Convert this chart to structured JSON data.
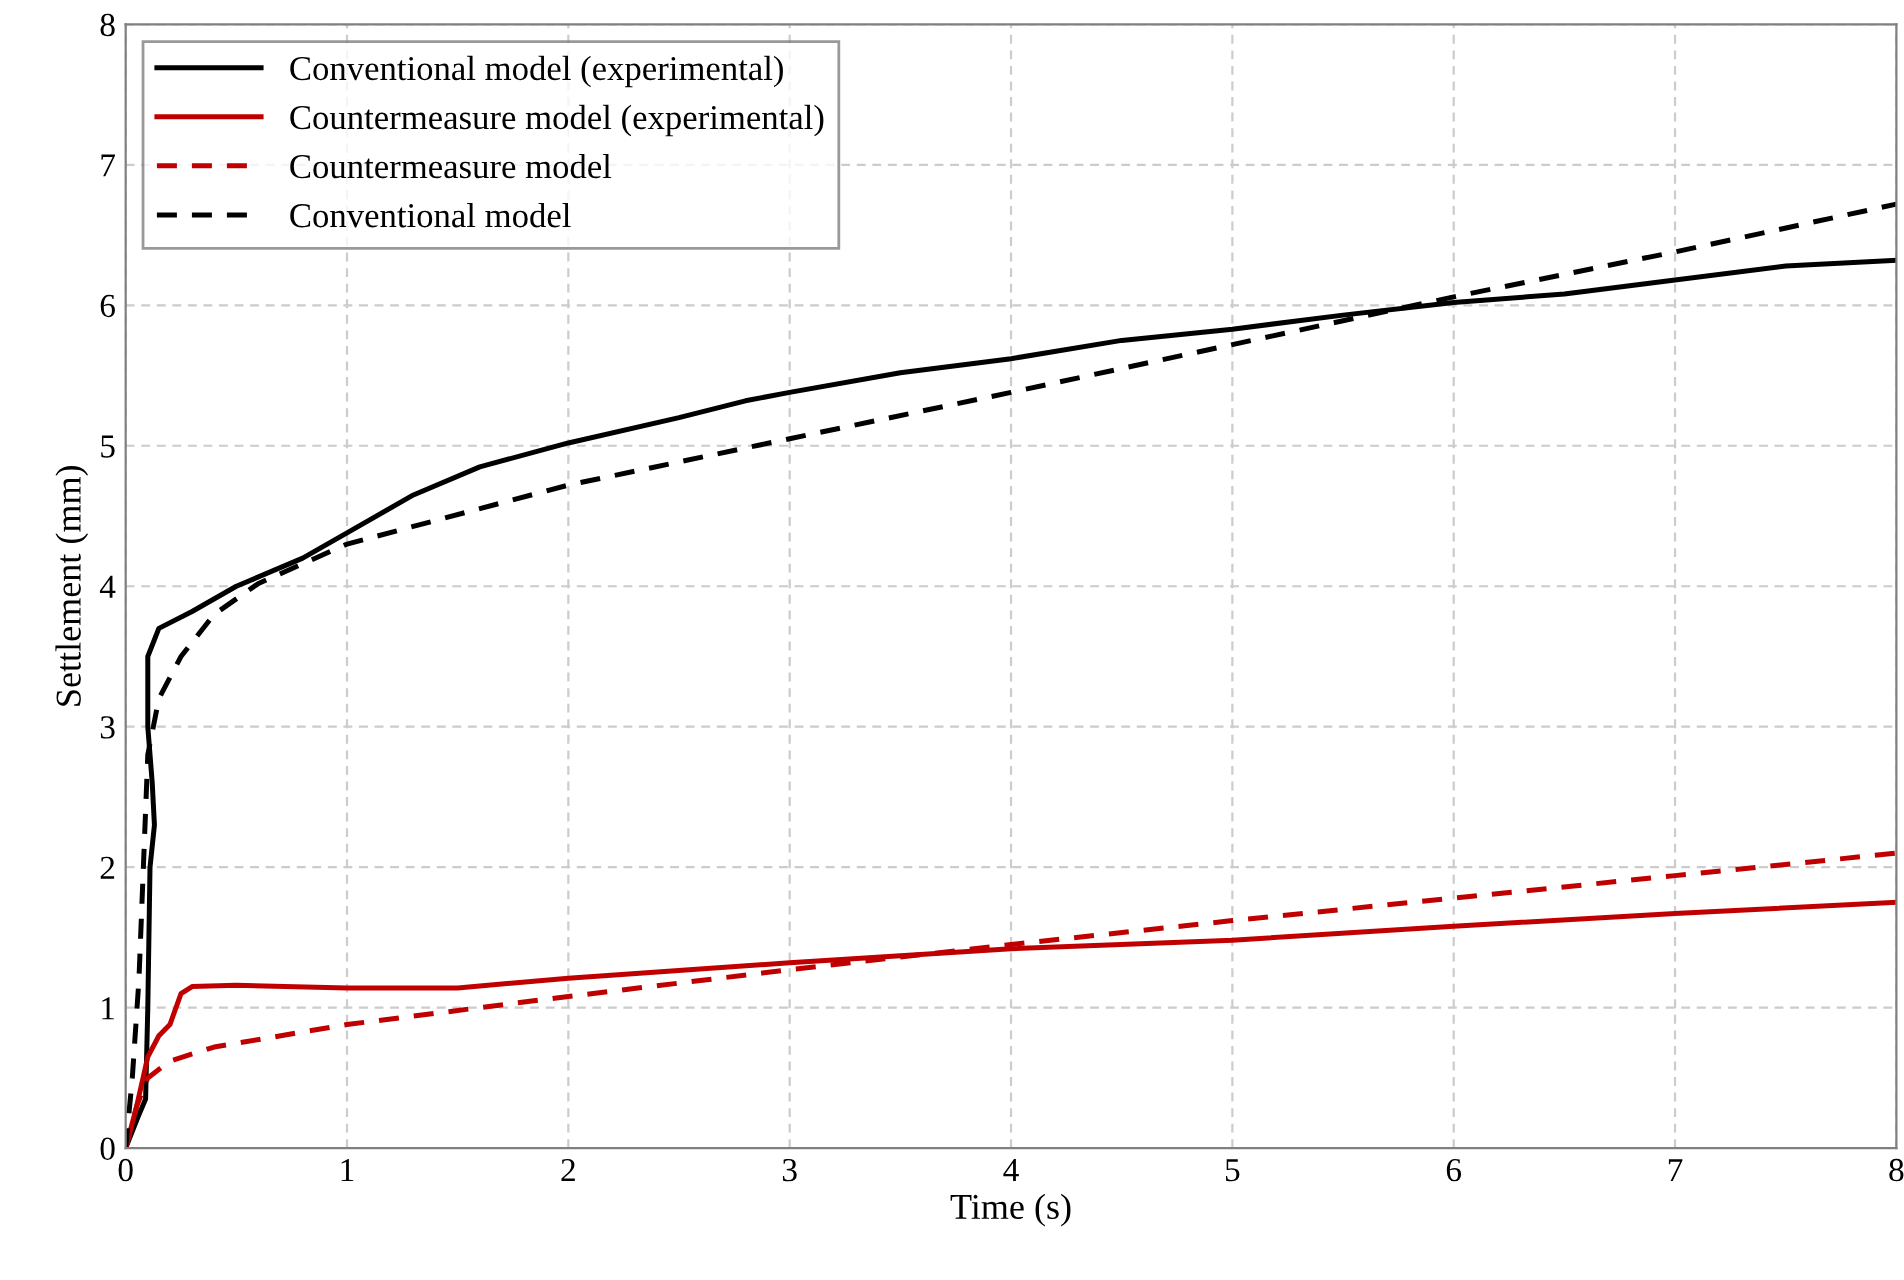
{
  "chart_data": {
    "type": "line",
    "xlabel": "Time (s)",
    "ylabel": "Settlement (mm)",
    "xlim": [
      0,
      8
    ],
    "ylim": [
      0,
      8
    ],
    "xticks": [
      0,
      1,
      2,
      3,
      4,
      5,
      6,
      7,
      8
    ],
    "yticks": [
      0,
      1,
      2,
      3,
      4,
      5,
      6,
      7,
      8
    ],
    "grid": true,
    "legend": "top left",
    "series": [
      {
        "name": "Conventional model (experimental)",
        "color": "#000000",
        "line_style": "solid",
        "x": [
          0,
          0.05,
          0.09,
          0.1,
          0.11,
          0.13,
          0.12,
          0.1,
          0.1,
          0.15,
          0.3,
          0.5,
          0.8,
          1,
          1.3,
          1.6,
          2,
          2.5,
          2.8,
          3,
          3.5,
          4,
          4.5,
          5,
          5.5,
          6,
          6.5,
          7,
          7.5,
          8
        ],
        "values": [
          0,
          0.2,
          0.35,
          1.0,
          2.0,
          2.3,
          2.6,
          3.0,
          3.5,
          3.7,
          3.82,
          4.0,
          4.2,
          4.38,
          4.65,
          4.85,
          5.02,
          5.2,
          5.32,
          5.38,
          5.52,
          5.62,
          5.75,
          5.83,
          5.93,
          6.02,
          6.08,
          6.18,
          6.28,
          6.32
        ]
      },
      {
        "name": "Countermeasure model (experimental)",
        "color": "#c00000",
        "line_style": "solid",
        "x": [
          0,
          0.05,
          0.1,
          0.15,
          0.2,
          0.25,
          0.3,
          0.5,
          1,
          1.5,
          2,
          3,
          4,
          5,
          6,
          7,
          8
        ],
        "values": [
          0,
          0.3,
          0.65,
          0.8,
          0.88,
          1.1,
          1.15,
          1.16,
          1.14,
          1.14,
          1.21,
          1.32,
          1.42,
          1.48,
          1.58,
          1.67,
          1.75
        ]
      },
      {
        "name": "Countermeasure model",
        "color": "#c00000",
        "line_style": "dashed",
        "x": [
          0,
          0.05,
          0.1,
          0.2,
          0.4,
          1,
          2,
          3,
          4,
          5,
          6,
          7,
          8
        ],
        "values": [
          0,
          0.3,
          0.5,
          0.62,
          0.72,
          0.88,
          1.08,
          1.27,
          1.45,
          1.62,
          1.78,
          1.94,
          2.1
        ]
      },
      {
        "name": "Conventional model",
        "color": "#000000",
        "line_style": "dashed",
        "x": [
          0,
          0.03,
          0.06,
          0.08,
          0.1,
          0.15,
          0.25,
          0.4,
          0.6,
          1,
          2,
          3,
          4,
          5,
          6,
          7,
          8
        ],
        "values": [
          0,
          0.5,
          1.2,
          2.0,
          2.8,
          3.2,
          3.5,
          3.8,
          4.02,
          4.3,
          4.72,
          5.05,
          5.38,
          5.72,
          6.06,
          6.38,
          6.72
        ]
      }
    ]
  }
}
